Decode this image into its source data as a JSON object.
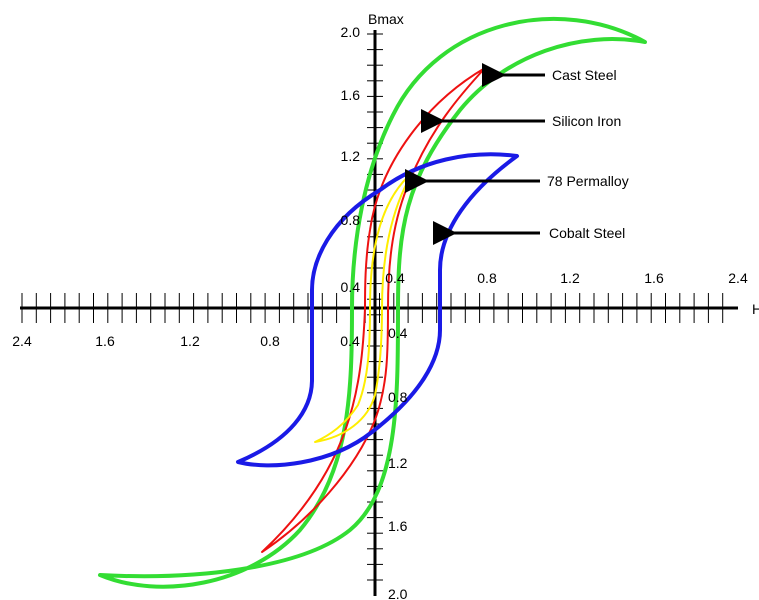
{
  "axes": {
    "y_title": "Bmax",
    "x_title": "H",
    "x_labels_left": [
      "2.4",
      "1.6",
      "1.2",
      "0.8",
      "0.4"
    ],
    "x_labels_right": [
      "0.4",
      "0.8",
      "1.2",
      "1.6",
      "2.4"
    ],
    "y_labels_top": [
      "2.0",
      "1.6",
      "1.2",
      "0.8",
      "0.4"
    ],
    "y_labels_bottom": [
      "0.4",
      "0.8",
      "1.2",
      "1.6",
      "2.0"
    ],
    "axis_color": "#000000"
  },
  "materials": [
    {
      "name": "Cast Steel",
      "color": "#33dd33"
    },
    {
      "name": "Silicon Iron",
      "color": "#ee1111"
    },
    {
      "name": "78 Permalloy",
      "color": "#ffee00"
    },
    {
      "name": "Cobalt Steel",
      "color": "#1a1ae6"
    }
  ]
}
